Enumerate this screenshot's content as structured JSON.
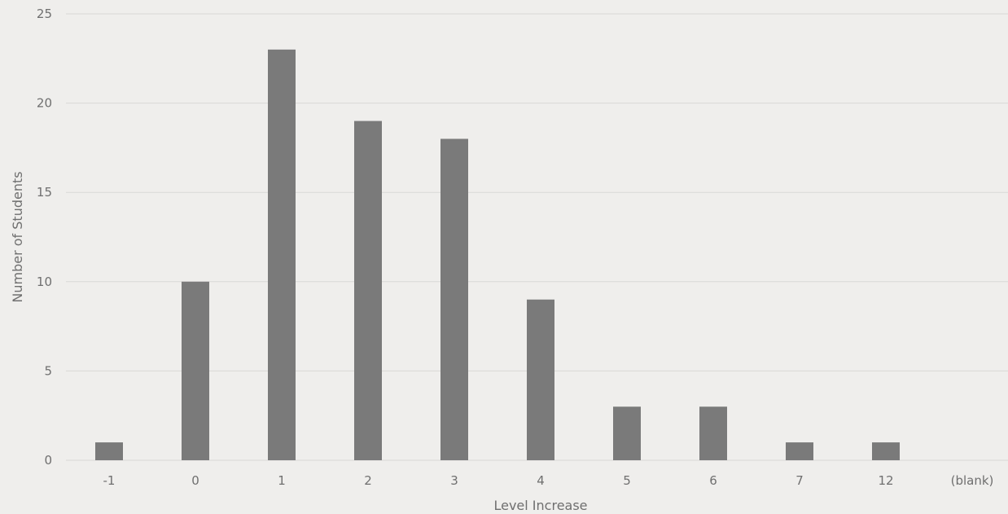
{
  "chart_data": {
    "type": "bar",
    "title": "",
    "xlabel": "Level Increase",
    "ylabel": "Number of Students",
    "categories": [
      "-1",
      "0",
      "1",
      "2",
      "3",
      "4",
      "5",
      "6",
      "7",
      "12",
      "(blank)"
    ],
    "values": [
      1,
      10,
      23,
      19,
      18,
      9,
      3,
      3,
      1,
      1,
      null
    ],
    "ylim": [
      0,
      25
    ],
    "yticks": [
      "0",
      "5",
      "10",
      "15",
      "20",
      "25"
    ],
    "grid": "horizontal",
    "legend": "none",
    "bar_color": "#7a7a7a"
  }
}
